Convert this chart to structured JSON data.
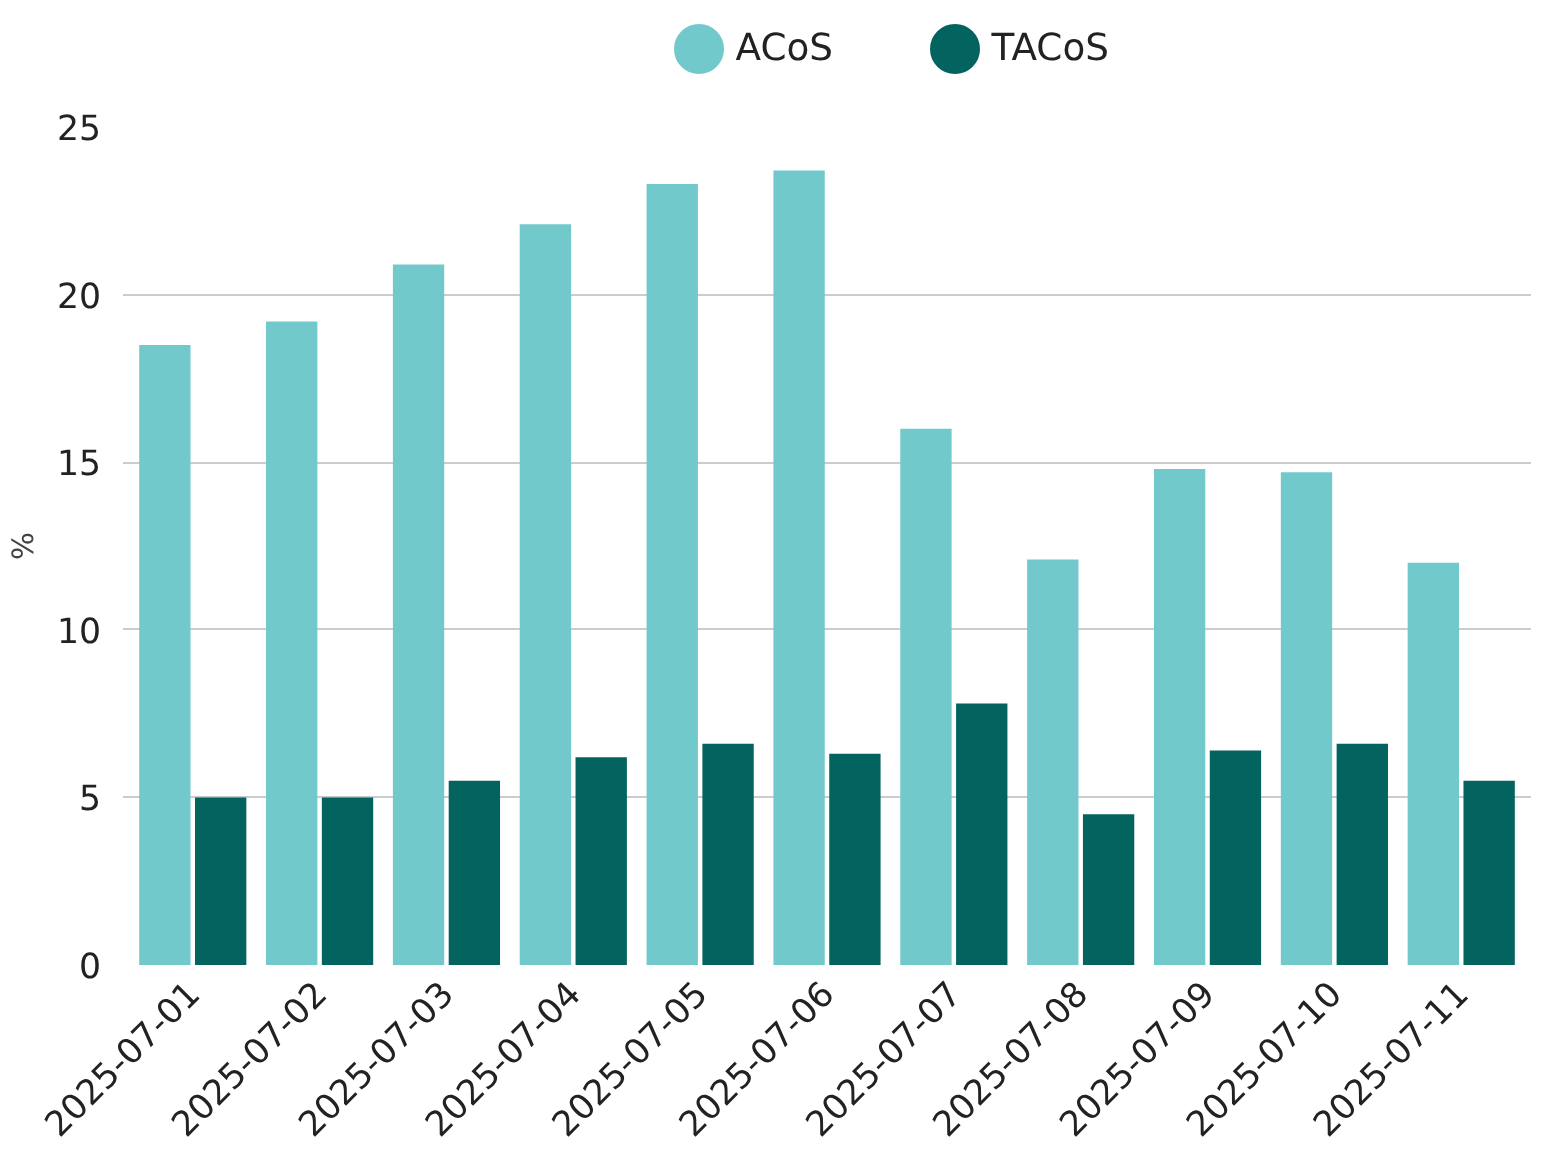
{
  "chart_data": {
    "type": "bar",
    "ylabel": "%",
    "categories": [
      "2025-07-01",
      "2025-07-02",
      "2025-07-03",
      "2025-07-04",
      "2025-07-05",
      "2025-07-06",
      "2025-07-07",
      "2025-07-08",
      "2025-07-09",
      "2025-07-10",
      "2025-07-11"
    ],
    "series": [
      {
        "name": "ACoS",
        "color": "#72c9cc",
        "values": [
          18.5,
          19.2,
          20.9,
          22.1,
          23.3,
          23.7,
          16.0,
          12.1,
          14.8,
          14.7,
          12.0
        ]
      },
      {
        "name": "TACoS",
        "color": "#03635f",
        "values": [
          5.0,
          5.0,
          5.5,
          6.2,
          6.6,
          6.3,
          7.8,
          4.5,
          6.4,
          6.6,
          5.5
        ]
      }
    ],
    "ylim": [
      0,
      25
    ],
    "yticks": [
      0,
      5,
      10,
      15,
      20,
      25
    ],
    "grid": "y",
    "legend": "top"
  }
}
